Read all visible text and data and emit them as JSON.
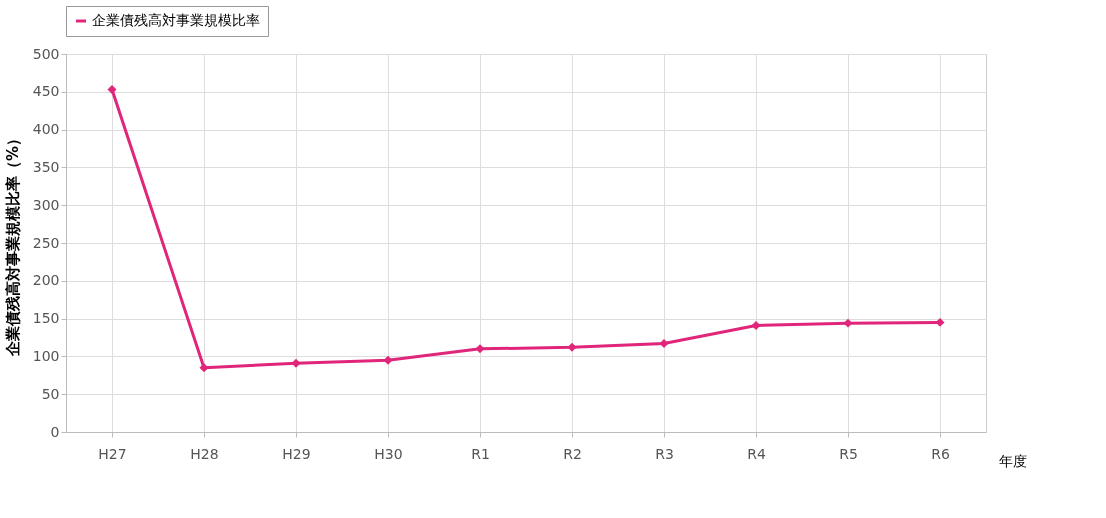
{
  "chart_data": {
    "type": "line",
    "categories": [
      "H27",
      "H28",
      "H29",
      "H30",
      "R1",
      "R2",
      "R3",
      "R4",
      "R5",
      "R6"
    ],
    "series": [
      {
        "name": "企業債残高対事業規模比率",
        "color": "#e0267a",
        "values": [
          453,
          85,
          91,
          95,
          110,
          112,
          117,
          141,
          144,
          145
        ]
      }
    ],
    "xlabel": "年度",
    "ylabel": "企業債残高対事業規模比率（%）",
    "ylim": [
      0,
      500
    ],
    "yticks": [
      0,
      50,
      100,
      150,
      200,
      250,
      300,
      350,
      400,
      450,
      500
    ],
    "grid": true,
    "legend": "top",
    "marker": "diamond",
    "line_style": "solid"
  }
}
